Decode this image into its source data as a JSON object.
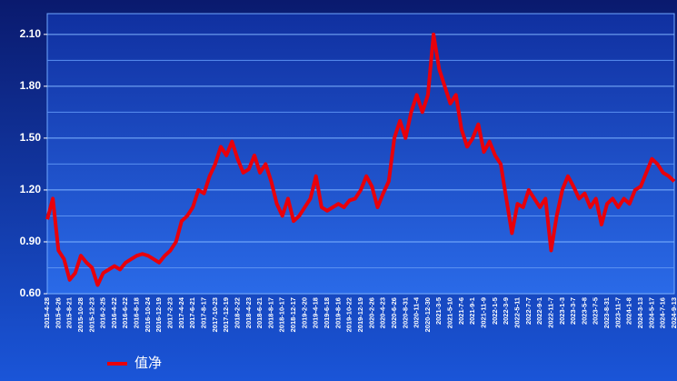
{
  "chart_data": {
    "type": "line",
    "categories": [
      "2015-4-28",
      null,
      "2015-6-26",
      null,
      "2015-8-21",
      null,
      "2015-10-28",
      null,
      "2015-12-23",
      null,
      "2016-2-25",
      null,
      "2016-4-22",
      null,
      "2016-6-22",
      null,
      "2016-8-18",
      null,
      "2016-10-24",
      null,
      "2016-12-19",
      null,
      "2017-2-23",
      null,
      "2017-4-24",
      null,
      "2017-6-21",
      null,
      "2017-8-17",
      null,
      "2017-10-23",
      null,
      "2017-12-19",
      null,
      "2018-2-22",
      null,
      "2018-4-23",
      null,
      "2018-6-21",
      null,
      "2018-8-17",
      null,
      "2018-10-17",
      null,
      "2018-12-17",
      null,
      "2019-2-20",
      null,
      "2019-4-18",
      null,
      "2019-6-18",
      null,
      "2019-8-16",
      null,
      "2019-10-22",
      null,
      "2019-12-19",
      null,
      "2020-2-26",
      null,
      "2020-4-23",
      null,
      "2020-6-26",
      null,
      "2020-8-31",
      null,
      "2020-11-4",
      null,
      "2020-12-30",
      null,
      "2021-3-5",
      null,
      "2021-5-10",
      null,
      "2021-7-6",
      null,
      "2021-9-1",
      null,
      "2021-11-9",
      null,
      "2022-1-5",
      null,
      "2022-3-9",
      null,
      "2022-5-11",
      null,
      "2022-7-7",
      null,
      "2022-9-1",
      null,
      "2022-11-7",
      null,
      "2023-1-3",
      null,
      "2023-3-7",
      null,
      "2023-5-8",
      null,
      "2023-7-5",
      null,
      "2023-8-31",
      null,
      "2023-11-7",
      null,
      "2024-1-8",
      null,
      "2024-3-13",
      null,
      "2024-5-17",
      null,
      "2024-7-16",
      null,
      "2024-9-13"
    ],
    "series": [
      {
        "name": "值净",
        "color": "#e8000b",
        "values": [
          1.03,
          1.15,
          0.85,
          0.8,
          0.68,
          0.72,
          0.82,
          0.78,
          0.75,
          0.65,
          0.72,
          0.74,
          0.76,
          0.74,
          0.78,
          0.8,
          0.82,
          0.83,
          0.82,
          0.8,
          0.78,
          0.82,
          0.85,
          0.9,
          1.02,
          1.05,
          1.1,
          1.2,
          1.18,
          1.28,
          1.35,
          1.45,
          1.4,
          1.48,
          1.38,
          1.3,
          1.32,
          1.4,
          1.3,
          1.35,
          1.25,
          1.12,
          1.05,
          1.15,
          1.02,
          1.05,
          1.1,
          1.15,
          1.28,
          1.1,
          1.08,
          1.1,
          1.12,
          1.1,
          1.14,
          1.15,
          1.2,
          1.28,
          1.22,
          1.1,
          1.18,
          1.25,
          1.5,
          1.6,
          1.5,
          1.65,
          1.75,
          1.65,
          1.75,
          2.1,
          1.9,
          1.8,
          1.7,
          1.75,
          1.55,
          1.45,
          1.5,
          1.58,
          1.42,
          1.48,
          1.4,
          1.35,
          1.15,
          0.95,
          1.12,
          1.1,
          1.2,
          1.15,
          1.1,
          1.15,
          0.85,
          1.05,
          1.2,
          1.28,
          1.22,
          1.15,
          1.18,
          1.1,
          1.15,
          1.0,
          1.12,
          1.15,
          1.1,
          1.15,
          1.12,
          1.2,
          1.22,
          1.3,
          1.38,
          1.35,
          1.3,
          1.28,
          1.25
        ]
      }
    ],
    "ylim": [
      0.6,
      2.22
    ],
    "yticks": [
      {
        "value": 0.6,
        "label": "0.60"
      },
      {
        "value": 0.9,
        "label": "0.90"
      },
      {
        "value": 1.2,
        "label": "1.20"
      },
      {
        "value": 1.5,
        "label": "1.50"
      },
      {
        "value": 1.8,
        "label": "1.80"
      },
      {
        "value": 2.1,
        "label": "2.10"
      }
    ],
    "grid": true,
    "legend": "bottom-left"
  }
}
